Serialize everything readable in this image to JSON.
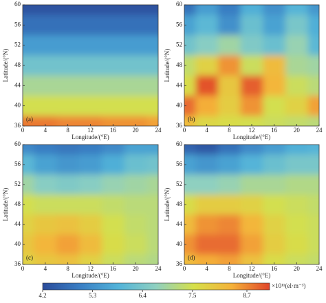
{
  "chart_data": [
    {
      "type": "heatmap",
      "panel_label": "(a)",
      "xlabel": "Longitude/(°E)",
      "ylabel": "Latitude/(°N)",
      "x": [
        0,
        4,
        8,
        12,
        16,
        20,
        24
      ],
      "y": [
        60,
        56,
        52,
        48,
        44,
        40,
        36
      ],
      "values": [
        [
          4.3,
          4.3,
          4.3,
          4.3,
          4.3,
          4.3,
          4.3
        ],
        [
          4.8,
          4.8,
          4.8,
          4.8,
          4.8,
          4.8,
          4.8
        ],
        [
          5.5,
          5.5,
          5.5,
          5.5,
          5.5,
          5.5,
          5.5
        ],
        [
          6.3,
          6.3,
          6.3,
          6.3,
          6.3,
          6.3,
          6.3
        ],
        [
          7.0,
          7.0,
          7.0,
          7.0,
          7.0,
          7.0,
          7.0
        ],
        [
          7.5,
          7.5,
          7.5,
          7.5,
          7.5,
          7.5,
          7.5
        ],
        [
          8.8,
          8.8,
          8.7,
          8.7,
          8.6,
          8.6,
          8.5
        ]
      ],
      "xlim": [
        0,
        24
      ],
      "ylim": [
        36,
        60
      ],
      "xticks": [
        0,
        4,
        8,
        12,
        16,
        20,
        24
      ],
      "yticks": [
        36,
        40,
        44,
        48,
        52,
        56,
        60
      ]
    },
    {
      "type": "heatmap",
      "panel_label": "(b)",
      "xlabel": "Longitude/(°E)",
      "ylabel": "Latitude/(°N)",
      "x": [
        0,
        4,
        8,
        12,
        16,
        20,
        24
      ],
      "y": [
        60,
        56,
        52,
        48,
        44,
        40,
        36
      ],
      "values": [
        [
          4.8,
          5.5,
          5.0,
          5.8,
          5.3,
          5.9,
          5.4
        ],
        [
          5.6,
          6.0,
          5.3,
          6.2,
          5.6,
          6.4,
          5.8
        ],
        [
          6.3,
          6.6,
          6.9,
          6.5,
          6.2,
          6.8,
          6.0
        ],
        [
          7.3,
          7.8,
          8.6,
          7.4,
          8.2,
          7.0,
          6.9
        ],
        [
          7.6,
          9.1,
          8.0,
          9.0,
          8.3,
          7.4,
          7.2
        ],
        [
          8.9,
          8.4,
          7.9,
          8.6,
          7.5,
          7.8,
          8.5
        ],
        [
          8.2,
          7.7,
          7.6,
          7.5,
          7.4,
          7.3,
          7.2
        ]
      ],
      "xlim": [
        0,
        24
      ],
      "ylim": [
        36,
        60
      ],
      "xticks": [
        0,
        4,
        8,
        12,
        16,
        20,
        24
      ],
      "yticks": [
        36,
        40,
        44,
        48,
        52,
        56,
        60
      ]
    },
    {
      "type": "heatmap",
      "panel_label": "(c)",
      "xlabel": "Longitude/(°E)",
      "ylabel": "Latitude/(°N)",
      "x": [
        0,
        4,
        8,
        12,
        16,
        20,
        24
      ],
      "y": [
        60,
        56,
        52,
        48,
        44,
        40,
        36
      ],
      "values": [
        [
          5.2,
          5.0,
          4.9,
          5.0,
          5.2,
          5.6,
          5.6
        ],
        [
          6.0,
          5.6,
          5.4,
          5.5,
          5.8,
          6.2,
          6.3
        ],
        [
          6.9,
          6.6,
          6.5,
          6.6,
          6.8,
          6.9,
          7.0
        ],
        [
          7.5,
          7.4,
          7.4,
          7.4,
          7.3,
          7.2,
          7.2
        ],
        [
          7.8,
          8.0,
          8.1,
          7.9,
          7.5,
          7.3,
          7.2
        ],
        [
          8.0,
          8.3,
          8.5,
          8.2,
          7.6,
          7.4,
          7.2
        ],
        [
          7.8,
          8.0,
          8.1,
          7.8,
          7.4,
          7.2,
          7.1
        ]
      ],
      "xlim": [
        0,
        24
      ],
      "ylim": [
        36,
        60
      ],
      "xticks": [
        0,
        4,
        8,
        12,
        16,
        20,
        24
      ],
      "yticks": [
        36,
        40,
        44,
        48,
        52,
        56,
        60
      ]
    },
    {
      "type": "heatmap",
      "panel_label": "(d)",
      "xlabel": "Longitude/(°E)",
      "ylabel": "Latitude/(°N)",
      "x": [
        0,
        4,
        8,
        12,
        16,
        20,
        24
      ],
      "y": [
        60,
        56,
        52,
        48,
        44,
        40,
        36
      ],
      "values": [
        [
          4.6,
          4.4,
          4.8,
          5.2,
          5.5,
          5.8,
          5.9
        ],
        [
          5.6,
          5.4,
          5.6,
          5.9,
          6.2,
          6.4,
          6.4
        ],
        [
          6.7,
          6.7,
          6.8,
          7.0,
          7.0,
          7.1,
          7.1
        ],
        [
          7.6,
          7.9,
          7.9,
          7.8,
          7.5,
          7.4,
          7.3
        ],
        [
          8.2,
          8.6,
          8.7,
          8.3,
          7.8,
          7.5,
          7.4
        ],
        [
          8.6,
          8.9,
          8.9,
          8.5,
          7.9,
          7.6,
          7.4
        ],
        [
          8.2,
          8.4,
          8.5,
          8.1,
          7.6,
          7.4,
          7.3
        ]
      ],
      "xlim": [
        0,
        24
      ],
      "ylim": [
        36,
        60
      ],
      "xticks": [
        0,
        4,
        8,
        12,
        16,
        20,
        24
      ],
      "yticks": [
        36,
        40,
        44,
        48,
        52,
        56,
        60
      ]
    }
  ],
  "colorbar": {
    "label": "×10¹¹(el·m⁻³)",
    "zlim": [
      4.2,
      9.2
    ],
    "ticks": [
      4.2,
      5.3,
      6.4,
      7.5,
      8.7
    ],
    "colors": [
      "#2b4c9b",
      "#3a7fc4",
      "#52b3d9",
      "#8fd0c0",
      "#d6e04a",
      "#f5b23a",
      "#e0452a"
    ]
  }
}
